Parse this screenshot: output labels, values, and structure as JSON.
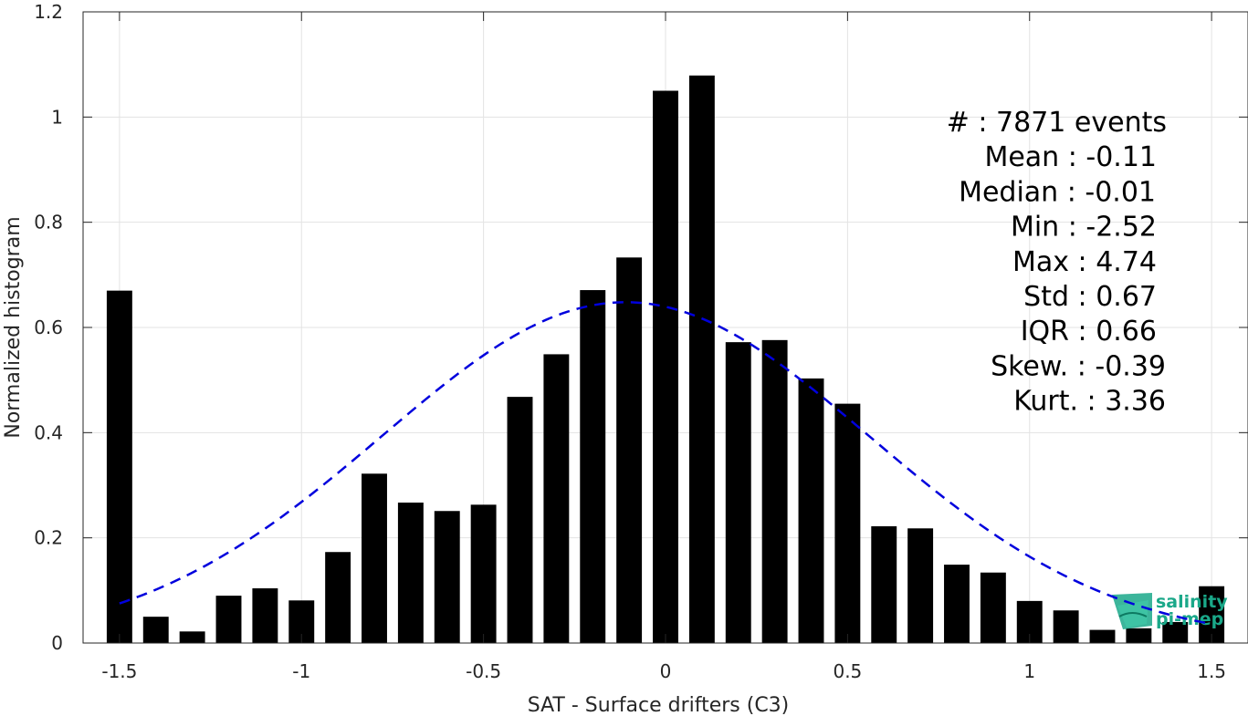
{
  "chart_data": {
    "type": "bar",
    "xlabel": "SAT - Surface drifters (C3)",
    "ylabel": "Normalized histogram",
    "xlim": [
      -1.6,
      1.6
    ],
    "ylim": [
      0,
      1.2
    ],
    "xticks": [
      -1.5,
      -1,
      -0.5,
      0,
      0.5,
      1,
      1.5
    ],
    "xtick_labels": [
      "-1.5",
      "-1",
      "-0.5",
      "0",
      "0.5",
      "1",
      "1.5"
    ],
    "yticks": [
      0,
      0.2,
      0.4,
      0.6,
      0.8,
      1,
      1.2
    ],
    "ytick_labels": [
      "0",
      "0.2",
      "0.4",
      "0.6",
      "0.8",
      "1",
      "1.2"
    ],
    "grid": true,
    "bar_width": 0.07,
    "bar_color": "#000000",
    "x": [
      -1.5,
      -1.4,
      -1.3,
      -1.2,
      -1.1,
      -1.0,
      -0.9,
      -0.8,
      -0.7,
      -0.6,
      -0.5,
      -0.4,
      -0.3,
      -0.2,
      -0.1,
      0.0,
      0.1,
      0.2,
      0.3,
      0.4,
      0.5,
      0.6,
      0.7,
      0.8,
      0.9,
      1.0,
      1.1,
      1.2,
      1.3,
      1.4,
      1.5
    ],
    "values": [
      0.67,
      0.05,
      0.022,
      0.09,
      0.104,
      0.081,
      0.173,
      0.322,
      0.267,
      0.251,
      0.263,
      0.468,
      0.549,
      0.671,
      0.733,
      1.05,
      1.079,
      0.572,
      0.576,
      0.503,
      0.455,
      0.222,
      0.218,
      0.149,
      0.134,
      0.08,
      0.062,
      0.025,
      0.028,
      0.04,
      0.108
    ],
    "fit": {
      "type": "normal",
      "mean": -0.11,
      "std": 0.67,
      "peak": 0.648,
      "x_range": [
        -1.5,
        1.5
      ],
      "color": "#0000dd",
      "style": "dashed"
    },
    "stats_lines": [
      "#  : 7871 events",
      "Mean : -0.11",
      "Median : -0.01",
      "Min : -2.52",
      "Max : 4.74",
      "Std : 0.67",
      "IQR : 0.66",
      "Skew. : -0.39",
      "Kurt. : 3.36"
    ]
  },
  "logo": {
    "line1": "salinity",
    "line2": "pi-mep",
    "color": "#1aa889"
  }
}
